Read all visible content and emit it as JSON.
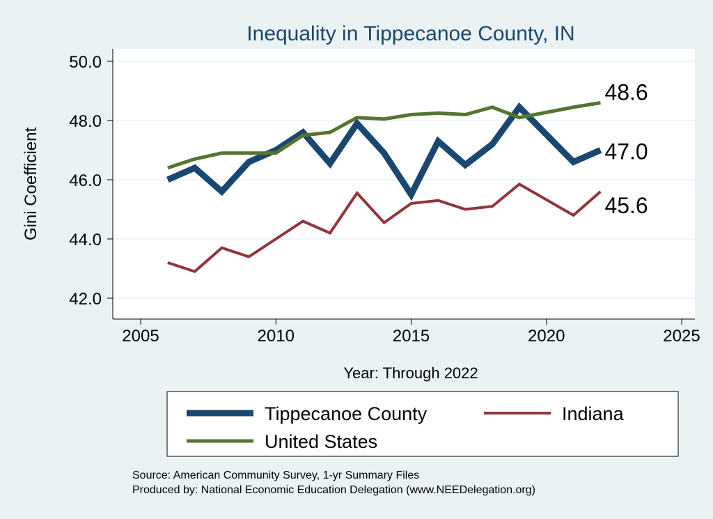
{
  "chart_data": {
    "type": "line",
    "title": "Inequality in Tippecanoe County, IN",
    "xlabel": "Year: Through 2022",
    "ylabel": "Gini Coefficient",
    "xlim": [
      2005,
      2025
    ],
    "ylim": [
      42,
      50
    ],
    "xticks": [
      2005,
      2010,
      2015,
      2020,
      2025
    ],
    "yticks": [
      "42.0",
      "44.0",
      "46.0",
      "48.0",
      "50.0"
    ],
    "grid": true,
    "legend_position": "bottom",
    "series": [
      {
        "name": "Tippecanoe County",
        "color": "#1a476f",
        "width": 9,
        "x": [
          2006,
          2007,
          2008,
          2009,
          2010,
          2011,
          2012,
          2013,
          2014,
          2015,
          2016,
          2017,
          2018,
          2019,
          2021,
          2022
        ],
        "values": [
          46.0,
          46.4,
          45.6,
          46.6,
          47.0,
          47.6,
          46.55,
          47.9,
          46.9,
          45.5,
          47.3,
          46.5,
          47.2,
          48.45,
          46.6,
          47.0
        ],
        "end_label": "47.0"
      },
      {
        "name": "Indiana",
        "color": "#90353b",
        "width": 4,
        "x": [
          2006,
          2007,
          2008,
          2009,
          2010,
          2011,
          2012,
          2013,
          2014,
          2015,
          2016,
          2017,
          2018,
          2019,
          2021,
          2022
        ],
        "values": [
          43.2,
          42.9,
          43.7,
          43.4,
          44.0,
          44.6,
          44.2,
          45.55,
          44.55,
          45.2,
          45.3,
          45.0,
          45.1,
          45.85,
          44.8,
          45.6
        ],
        "end_label": "45.6"
      },
      {
        "name": "United States",
        "color": "#55752f",
        "width": 5,
        "x": [
          2006,
          2007,
          2008,
          2009,
          2010,
          2011,
          2012,
          2013,
          2014,
          2015,
          2016,
          2017,
          2018,
          2019,
          2021,
          2022
        ],
        "values": [
          46.4,
          46.7,
          46.9,
          46.9,
          46.9,
          47.5,
          47.6,
          48.1,
          48.05,
          48.2,
          48.25,
          48.2,
          48.45,
          48.1,
          48.45,
          48.6
        ],
        "end_label": "48.6"
      }
    ],
    "notes": [
      "Source: American Community Survey, 1-yr Summary Files",
      "Produced by: National Economic Education Delegation (www.NEEDelegation.org)"
    ]
  }
}
